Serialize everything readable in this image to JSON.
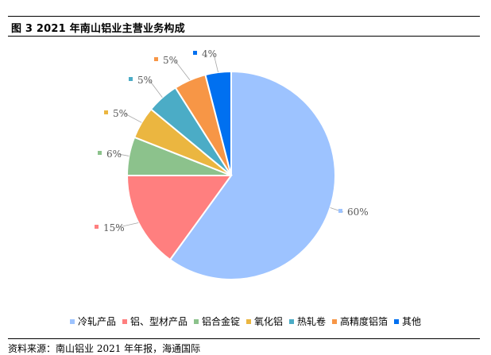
{
  "title": "图 3 2021 年南山铝业主营业务构成",
  "source": "资料来源：南山铝业 2021 年年报，海通国际",
  "chart_data": {
    "type": "pie",
    "categories": [
      "冷轧产品",
      "铝、型材产品",
      "铝合金锭",
      "氧化铝",
      "热轧卷",
      "高精度铝箔",
      "其他"
    ],
    "values": [
      60,
      15,
      6,
      5,
      5,
      5,
      4
    ],
    "labels": [
      "60%",
      "15%",
      "6%",
      "5%",
      "5%",
      "5%",
      "4%"
    ],
    "colors": [
      "#9DC3FF",
      "#FF7F7F",
      "#8CC28C",
      "#EBB640",
      "#4BACC6",
      "#F79646",
      "#0070F0"
    ],
    "legend_position": "bottom"
  }
}
